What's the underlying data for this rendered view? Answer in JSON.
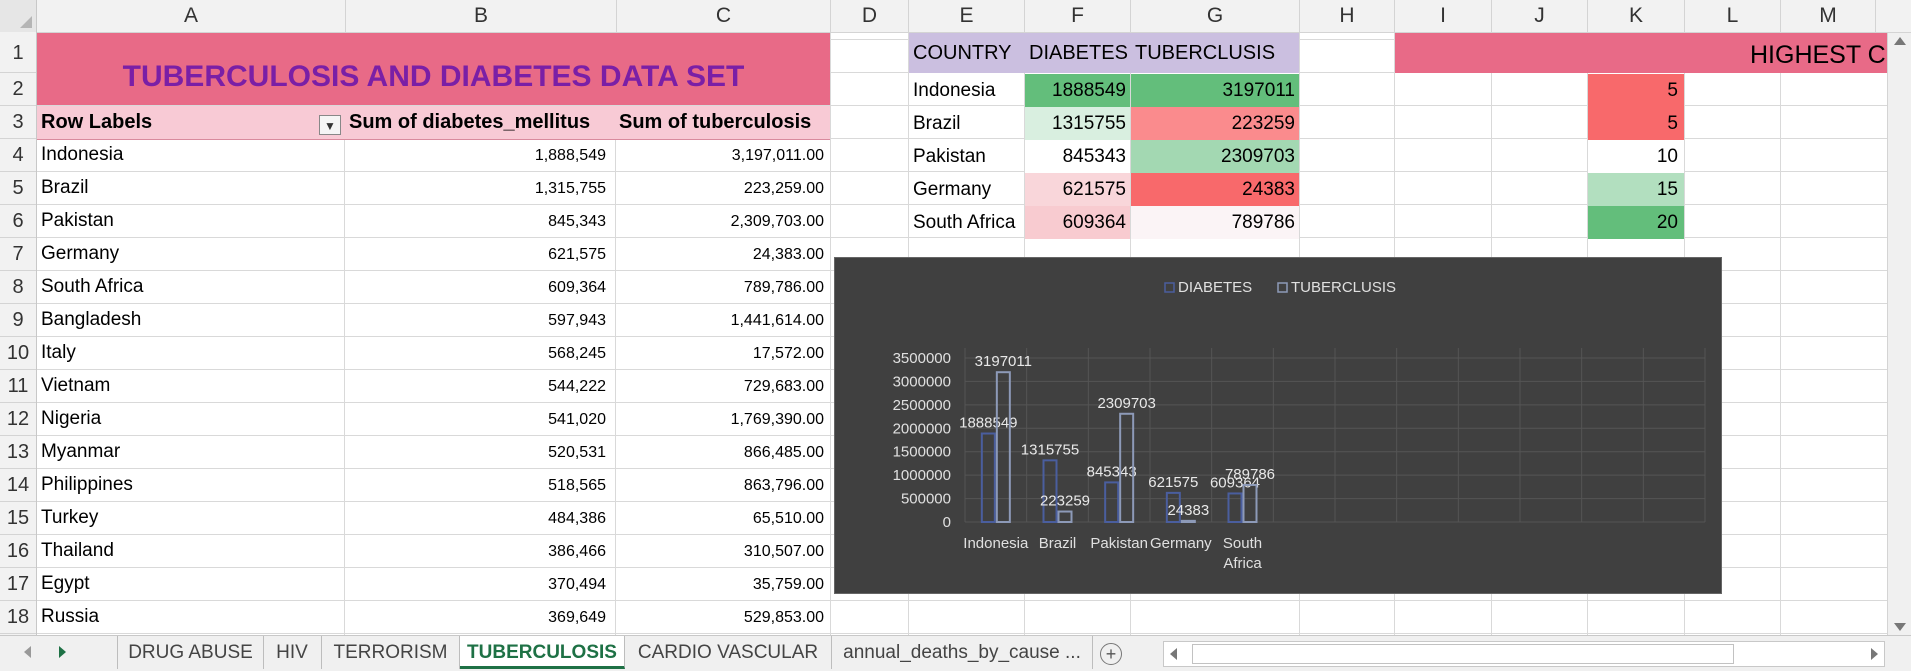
{
  "columns": [
    "A",
    "B",
    "C",
    "D",
    "E",
    "F",
    "G",
    "H",
    "I",
    "J",
    "K",
    "L",
    "M"
  ],
  "rows": [
    "1",
    "2",
    "3",
    "4",
    "5",
    "6",
    "7",
    "8",
    "9",
    "10",
    "11",
    "12",
    "13",
    "14",
    "15",
    "16",
    "17",
    "18"
  ],
  "title": "TUBERCULOSIS AND DIABETES DATA SET",
  "pivot": {
    "header": [
      "Row Labels",
      "Sum of diabetes_mellitus",
      "Sum of tuberculosis"
    ],
    "rows": [
      [
        "Indonesia",
        "1,888,549",
        "3,197,011.00"
      ],
      [
        "Brazil",
        "1,315,755",
        "223,259.00"
      ],
      [
        "Pakistan",
        "845,343",
        "2,309,703.00"
      ],
      [
        "Germany",
        "621,575",
        "24,383.00"
      ],
      [
        "South Africa",
        "609,364",
        "789,786.00"
      ],
      [
        "Bangladesh",
        "597,943",
        "1,441,614.00"
      ],
      [
        "Italy",
        "568,245",
        "17,572.00"
      ],
      [
        "Vietnam",
        "544,222",
        "729,683.00"
      ],
      [
        "Nigeria",
        "541,020",
        "1,769,390.00"
      ],
      [
        "Myanmar",
        "520,531",
        "866,485.00"
      ],
      [
        "Philippines",
        "518,565",
        "863,796.00"
      ],
      [
        "Turkey",
        "484,386",
        "65,510.00"
      ],
      [
        "Thailand",
        "386,466",
        "310,507.00"
      ],
      [
        "Egypt",
        "370,494",
        "35,759.00"
      ],
      [
        "Russia",
        "369,649",
        "529,853.00"
      ]
    ]
  },
  "summary_table": {
    "header": [
      "COUNTRY",
      "DIABETES",
      "TUBERCLUSIS"
    ],
    "rows": [
      [
        "Indonesia",
        "1888549",
        "3197011"
      ],
      [
        "Brazil",
        "1315755",
        "223259"
      ],
      [
        "Pakistan",
        "845343",
        "2309703"
      ],
      [
        "Germany",
        "621575",
        "24383"
      ],
      [
        "South Africa",
        "609364",
        "789786"
      ]
    ],
    "diabetes_colors": [
      "#63be7b",
      "#d9efe0",
      "#ffffff",
      "#f9d6da",
      "#f8cbd0"
    ],
    "tb_colors": [
      "#63be7b",
      "#fa8b8d",
      "#a3d8b2",
      "#f8696b",
      "#fbf4f6"
    ]
  },
  "right_header": "HIGHEST C",
  "k_values": {
    "values": [
      "5",
      "5",
      "10",
      "15",
      "20"
    ],
    "colors": [
      "#f8696b",
      "#f8696b",
      "#ffffff",
      "#b2dfbf",
      "#63be7b"
    ]
  },
  "chart_data": {
    "type": "bar",
    "categories": [
      "Indonesia",
      "Brazil",
      "Pakistan",
      "Germany",
      "South Africa"
    ],
    "series": [
      {
        "name": "DIABETES",
        "values": [
          1888549,
          1315755,
          845343,
          621575,
          609364
        ]
      },
      {
        "name": "TUBERCLUSIS",
        "values": [
          3197011,
          223259,
          2309703,
          24383,
          789786
        ]
      }
    ],
    "yticks": [
      "0",
      "500000",
      "1000000",
      "1500000",
      "2000000",
      "2500000",
      "3000000",
      "3500000"
    ],
    "ylim": [
      0,
      3500000
    ],
    "legend": "top",
    "grid": true,
    "colors": {
      "DIABETES": "#4a5e9e",
      "TUBERCLUSIS": "#8d9ab8"
    }
  },
  "sheet_tabs": [
    "DRUG ABUSE",
    "HIV",
    "TERRORISM",
    "TUBERCULOSIS",
    "CARDIO VASCULAR",
    "annual_deaths_by_cause ..."
  ],
  "active_tab": "TUBERCULOSIS"
}
